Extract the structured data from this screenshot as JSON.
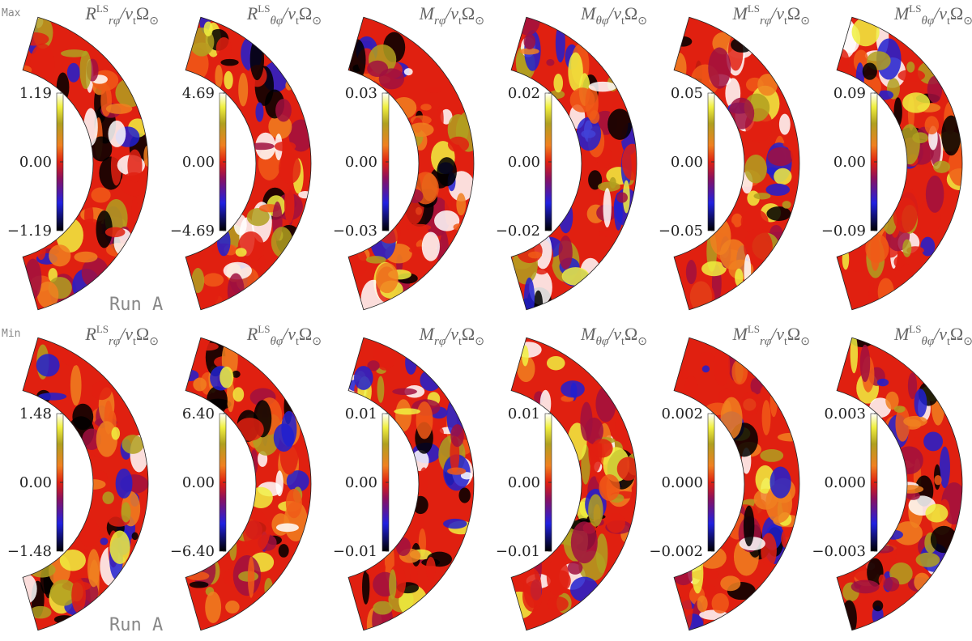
{
  "rows": [
    {
      "label": "Max",
      "note": "Run A",
      "panels": [
        {
          "title": {
            "main": "R",
            "sup": "LS",
            "sub": "rφ",
            "denom": "/ν",
            "denom_sub": "t",
            "tail": "Ω",
            "tail_sub": "⊙"
          },
          "ticks": [
            "1.19",
            "0.00",
            "−1.19"
          ]
        },
        {
          "title": {
            "main": "R",
            "sup": "LS",
            "sub": "θφ",
            "denom": "/ν",
            "denom_sub": "t",
            "tail": "Ω",
            "tail_sub": "⊙"
          },
          "ticks": [
            "4.69",
            "0.00",
            "−4.69"
          ]
        },
        {
          "title": {
            "main": "M",
            "sub": "rφ",
            "denom": "/ν",
            "denom_sub": "t",
            "tail": "Ω",
            "tail_sub": "⊙"
          },
          "ticks": [
            "0.03",
            "0.00",
            "−0.03"
          ]
        },
        {
          "title": {
            "main": "M",
            "sub": "θφ",
            "denom": "/ν",
            "denom_sub": "t",
            "tail": "Ω",
            "tail_sub": "⊙"
          },
          "ticks": [
            "0.02",
            "0.00",
            "−0.02"
          ]
        },
        {
          "title": {
            "main": "M",
            "sup": "LS",
            "sub": "rφ",
            "denom": "/ν",
            "denom_sub": "t",
            "tail": "Ω",
            "tail_sub": "⊙"
          },
          "ticks": [
            "0.05",
            "0.00",
            "−0.05"
          ]
        },
        {
          "title": {
            "main": "M",
            "sup": "LS",
            "sub": "θφ",
            "denom": "/ν",
            "denom_sub": "t",
            "tail": "Ω",
            "tail_sub": "⊙"
          },
          "ticks": [
            "0.09",
            "0.00",
            "−0.09"
          ]
        }
      ]
    },
    {
      "label": "Min",
      "note": "Run A",
      "panels": [
        {
          "title": {
            "main": "R",
            "sup": "LS",
            "sub": "rφ",
            "denom": "/ν",
            "denom_sub": "t",
            "tail": "Ω",
            "tail_sub": "⊙"
          },
          "ticks": [
            "1.48",
            "0.00",
            "−1.48"
          ]
        },
        {
          "title": {
            "main": "R",
            "sup": "LS",
            "sub": "θφ",
            "denom": "/ν",
            "denom_sub": "t",
            "tail": "Ω",
            "tail_sub": "⊙"
          },
          "ticks": [
            "6.40",
            "0.00",
            "−6.40"
          ]
        },
        {
          "title": {
            "main": "M",
            "sub": "rφ",
            "denom": "/ν",
            "denom_sub": "t",
            "tail": "Ω",
            "tail_sub": "⊙"
          },
          "ticks": [
            "0.01",
            "0.00",
            "−0.01"
          ]
        },
        {
          "title": {
            "main": "M",
            "sub": "θφ",
            "denom": "/ν",
            "denom_sub": "t",
            "tail": "Ω",
            "tail_sub": "⊙"
          },
          "ticks": [
            "0.01",
            "0.00",
            "−0.01"
          ]
        },
        {
          "title": {
            "main": "M",
            "sup": "LS",
            "sub": "rφ",
            "denom": "/ν",
            "denom_sub": "t",
            "tail": "Ω",
            "tail_sub": "⊙"
          },
          "ticks": [
            "0.002",
            "0.000",
            "−0.002"
          ]
        },
        {
          "title": {
            "main": "M",
            "sup": "LS",
            "sub": "θφ",
            "denom": "/ν",
            "denom_sub": "t",
            "tail": "Ω",
            "tail_sub": "⊙"
          },
          "ticks": [
            "0.003",
            "0.000",
            "−0.003"
          ]
        }
      ]
    }
  ]
}
